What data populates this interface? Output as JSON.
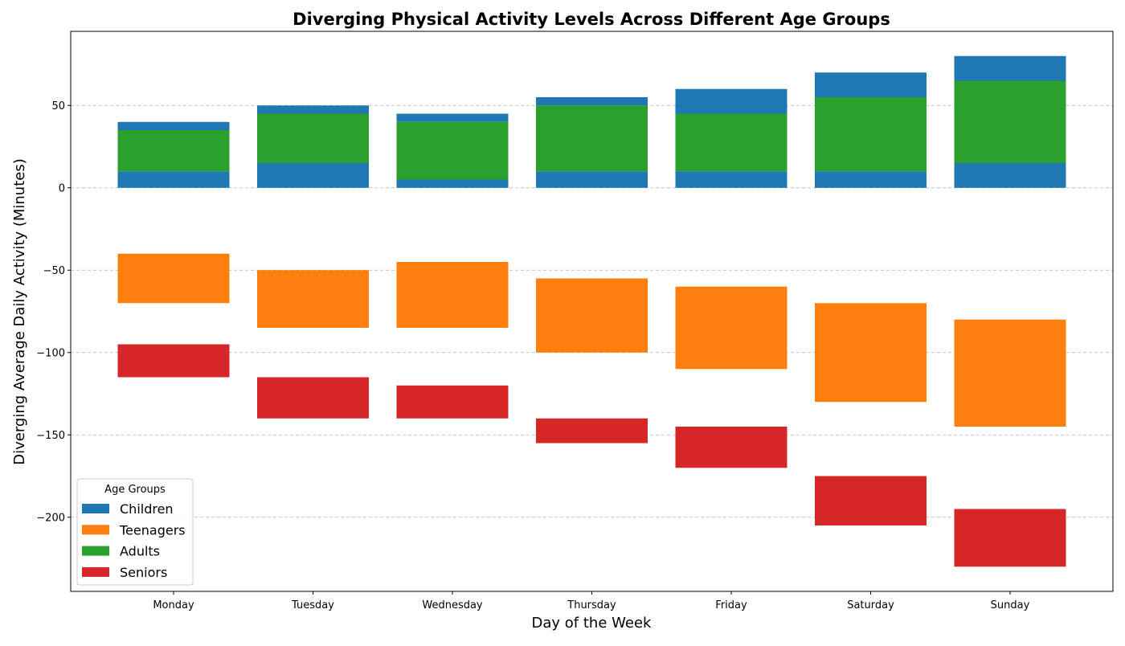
{
  "chart_data": {
    "type": "bar",
    "title": "Diverging Physical Activity Levels Across Different Age Groups",
    "xlabel": "Day of the Week",
    "ylabel": "Diverging Average Daily Activity (Minutes)",
    "categories": [
      "Monday",
      "Tuesday",
      "Wednesday",
      "Thursday",
      "Friday",
      "Saturday",
      "Sunday"
    ],
    "ylim": [
      -245,
      95
    ],
    "yticks": [
      50,
      0,
      -50,
      -100,
      -150,
      -200
    ],
    "ytick_labels": [
      "50",
      "0",
      "−50",
      "−100",
      "−150",
      "−200"
    ],
    "grid": "horizontal dashed",
    "legend": {
      "title": "Age Groups",
      "placement": "lower-left",
      "entries": [
        "Children",
        "Teenagers",
        "Adults",
        "Seniors"
      ]
    },
    "series": [
      {
        "name": "Children",
        "color": "#1f77b4",
        "segments": [
          [
            [
              0,
              10
            ],
            [
              35,
              40
            ]
          ],
          [
            [
              0,
              15
            ],
            [
              45,
              50
            ]
          ],
          [
            [
              0,
              5
            ],
            [
              40,
              45
            ]
          ],
          [
            [
              0,
              10
            ],
            [
              50,
              55
            ]
          ],
          [
            [
              0,
              10
            ],
            [
              45,
              60
            ]
          ],
          [
            [
              0,
              10
            ],
            [
              55,
              70
            ]
          ],
          [
            [
              0,
              15
            ],
            [
              65,
              80
            ]
          ]
        ]
      },
      {
        "name": "Teenagers",
        "color": "#ff7f0e",
        "segments": [
          [
            [
              -70,
              -40
            ]
          ],
          [
            [
              -85,
              -50
            ]
          ],
          [
            [
              -85,
              -45
            ]
          ],
          [
            [
              -100,
              -55
            ]
          ],
          [
            [
              -110,
              -60
            ]
          ],
          [
            [
              -130,
              -70
            ]
          ],
          [
            [
              -145,
              -80
            ]
          ]
        ]
      },
      {
        "name": "Adults",
        "color": "#2ca02c",
        "segments": [
          [
            [
              10,
              35
            ]
          ],
          [
            [
              15,
              45
            ]
          ],
          [
            [
              5,
              40
            ]
          ],
          [
            [
              10,
              50
            ]
          ],
          [
            [
              10,
              45
            ]
          ],
          [
            [
              10,
              55
            ]
          ],
          [
            [
              15,
              65
            ]
          ]
        ]
      },
      {
        "name": "Seniors",
        "color": "#d62728",
        "segments": [
          [
            [
              -115,
              -95
            ]
          ],
          [
            [
              -140,
              -115
            ]
          ],
          [
            [
              -140,
              -120
            ]
          ],
          [
            [
              -155,
              -140
            ]
          ],
          [
            [
              -170,
              -145
            ]
          ],
          [
            [
              -205,
              -175
            ]
          ],
          [
            [
              -230,
              -195
            ]
          ]
        ]
      }
    ]
  }
}
